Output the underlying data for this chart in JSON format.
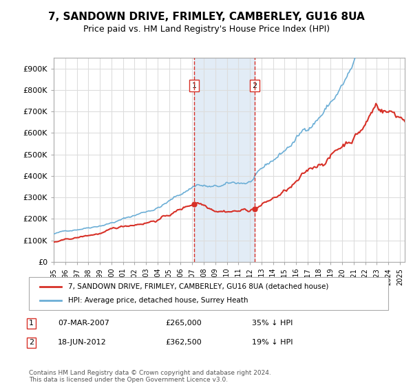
{
  "title": "7, SANDOWN DRIVE, FRIMLEY, CAMBERLEY, GU16 8UA",
  "subtitle": "Price paid vs. HM Land Registry's House Price Index (HPI)",
  "xlabel": "",
  "ylabel": "",
  "ylim": [
    0,
    950000
  ],
  "yticks": [
    0,
    100000,
    200000,
    300000,
    400000,
    500000,
    600000,
    700000,
    800000,
    900000
  ],
  "ytick_labels": [
    "£0",
    "£100K",
    "£200K",
    "£300K",
    "£400K",
    "£500K",
    "£600K",
    "£700K",
    "£800K",
    "£900K"
  ],
  "hpi_color": "#6baed6",
  "price_color": "#d73027",
  "shade_color": "#c6dbef",
  "event1_date_idx": 144,
  "event2_date_idx": 204,
  "event1_label": "1",
  "event2_label": "2",
  "event1_price": 265000,
  "event2_price": 362500,
  "legend_line1": "7, SANDOWN DRIVE, FRIMLEY, CAMBERLEY, GU16 8UA (detached house)",
  "legend_line2": "HPI: Average price, detached house, Surrey Heath",
  "table_row1": "1    07-MAR-2007          £265,000          35% ↓ HPI",
  "table_row2": "2    18-JUN-2012          £362,500          19% ↓ HPI",
  "footnote": "Contains HM Land Registry data © Crown copyright and database right 2024.\nThis data is licensed under the Open Government Licence v3.0.",
  "background_color": "#ffffff",
  "grid_color": "#dddddd"
}
